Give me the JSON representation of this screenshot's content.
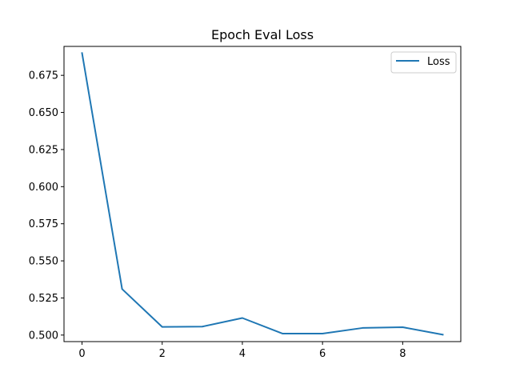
{
  "chart_data": {
    "type": "line",
    "title": "Epoch Eval Loss",
    "xlabel": "",
    "ylabel": "",
    "x": [
      0,
      1,
      2,
      3,
      4,
      5,
      6,
      7,
      8,
      9
    ],
    "series": [
      {
        "name": "Loss",
        "color": "#1f77b4",
        "values": [
          0.69,
          0.531,
          0.5055,
          0.5057,
          0.5115,
          0.501,
          0.501,
          0.5048,
          0.5053,
          0.5003
        ]
      }
    ],
    "xlim": [
      -0.45,
      9.45
    ],
    "ylim": [
      0.4956,
      0.6945
    ],
    "xticks": [
      0,
      2,
      4,
      6,
      8
    ],
    "xtick_labels": [
      "0",
      "2",
      "4",
      "6",
      "8"
    ],
    "yticks": [
      0.5,
      0.525,
      0.55,
      0.575,
      0.6,
      0.625,
      0.65,
      0.675
    ],
    "ytick_labels": [
      "0.500",
      "0.525",
      "0.550",
      "0.575",
      "0.600",
      "0.625",
      "0.650",
      "0.675"
    ],
    "grid": false,
    "legend_position": "top-right"
  }
}
